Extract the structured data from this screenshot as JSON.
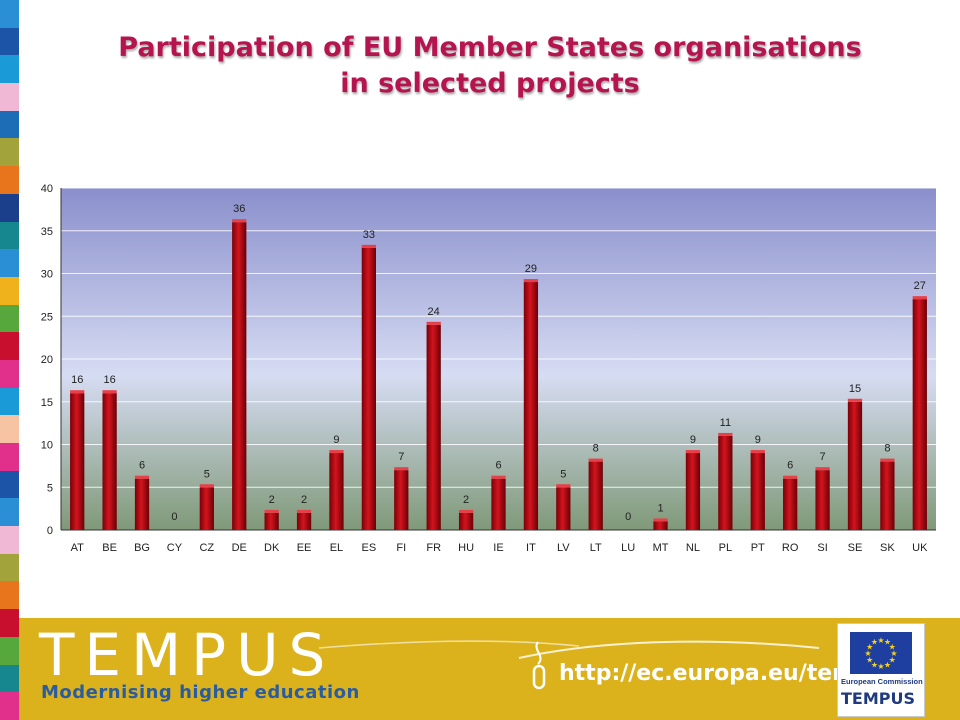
{
  "title_lines": [
    "Participation of EU Member States organisations",
    "in selected projects"
  ],
  "chart_data": {
    "type": "bar",
    "title": "Participation of EU Member States organisations in selected projects",
    "categories": [
      "AT",
      "BE",
      "BG",
      "CY",
      "CZ",
      "DE",
      "DK",
      "EE",
      "EL",
      "ES",
      "FI",
      "FR",
      "HU",
      "IE",
      "IT",
      "LV",
      "LT",
      "LU",
      "MT",
      "NL",
      "PL",
      "PT",
      "RO",
      "SI",
      "SE",
      "SK",
      "UK"
    ],
    "values": [
      16,
      16,
      6,
      0,
      5,
      36,
      2,
      2,
      9,
      33,
      7,
      24,
      2,
      6,
      29,
      5,
      8,
      0,
      1,
      9,
      11,
      9,
      6,
      7,
      15,
      8,
      27
    ],
    "ylim": [
      0,
      40
    ],
    "yticks": [
      0,
      5,
      10,
      15,
      20,
      25,
      30,
      35,
      40
    ],
    "grid": true,
    "data_labels": true,
    "xlabel": "",
    "ylabel": "",
    "bar_color": "#c0101a",
    "plot_bg_top": "#8a8fcc",
    "plot_bg_bottom": "#7f9978"
  },
  "footer": {
    "logo_text": "TEMPUS",
    "tagline": "Modernising higher education",
    "url": "http://ec.europa.eu/tempus",
    "ec_line1": "European Commission",
    "ec_line2": "TEMPUS",
    "background": "#dcb21c"
  },
  "stripe_colors": [
    "#2a8fd4",
    "#1c55a8",
    "#1a9ad6",
    "#f0b8d4",
    "#1c6db5",
    "#a3a33c",
    "#e8741c",
    "#1c3f8c",
    "#16878f",
    "#2a8fd4",
    "#f0b21c",
    "#56a83c",
    "#c8102e",
    "#e0308c",
    "#1a9ad6",
    "#f6c4a2",
    "#e0308c",
    "#1c55a8",
    "#2a8fd4",
    "#f0b8d4",
    "#a3a33c",
    "#e8741c",
    "#c8102e",
    "#56a83c",
    "#16878f",
    "#e0308c"
  ]
}
